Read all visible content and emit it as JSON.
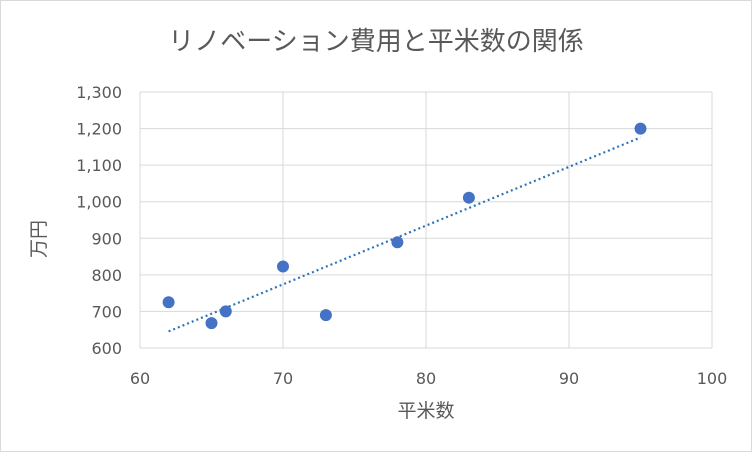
{
  "chart_data": {
    "type": "scatter",
    "title": "リノベーション費用と平米数の関係",
    "xlabel": "平米数",
    "ylabel": "万円",
    "xlim": [
      60,
      100
    ],
    "ylim": [
      600,
      1300
    ],
    "x_ticks": [
      "60",
      "70",
      "80",
      "90",
      "100"
    ],
    "y_ticks": [
      "600",
      "700",
      "800",
      "900",
      "1,000",
      "1,100",
      "1,200",
      "1,300"
    ],
    "grid": true,
    "legend": "none",
    "colors": {
      "points": "#4472c4",
      "trendline": "#2e75b6",
      "gridline": "#d9d9d9",
      "text": "#595959"
    },
    "series": [
      {
        "points": [
          {
            "x": 62,
            "y": 725
          },
          {
            "x": 65,
            "y": 668
          },
          {
            "x": 66,
            "y": 700
          },
          {
            "x": 70,
            "y": 823
          },
          {
            "x": 73,
            "y": 690
          },
          {
            "x": 78,
            "y": 889
          },
          {
            "x": 83,
            "y": 1011
          },
          {
            "x": 95,
            "y": 1200
          }
        ]
      }
    ],
    "trendline": {
      "type": "linear",
      "style": "dotted"
    }
  }
}
